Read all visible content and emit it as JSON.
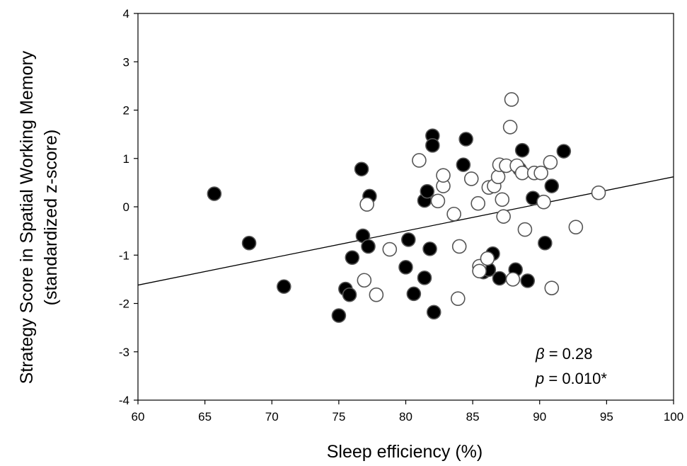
{
  "chart_data": {
    "type": "scatter",
    "title": "",
    "xlabel": "Sleep efficiency (%)",
    "ylabel": [
      "Strategy Score in Spatial Working Memory",
      "(standardized z-score)"
    ],
    "xlim": [
      60,
      100
    ],
    "ylim": [
      -4,
      4
    ],
    "x_ticks": [
      "60",
      "65",
      "70",
      "75",
      "80",
      "85",
      "90",
      "95",
      "100"
    ],
    "y_ticks": [
      "4",
      "3",
      "2",
      "1",
      "0",
      "-1",
      "-2",
      "-3",
      "-4"
    ],
    "grid": false,
    "legend": "none",
    "series": [
      {
        "marker": "filled-circle",
        "color": "#000000",
        "points": [
          [
            65.7,
            0.27
          ],
          [
            68.3,
            -0.75
          ],
          [
            70.9,
            -1.65
          ],
          [
            75.0,
            -2.25
          ],
          [
            75.5,
            -1.7
          ],
          [
            75.8,
            -1.82
          ],
          [
            76.0,
            -1.05
          ],
          [
            76.7,
            0.78
          ],
          [
            76.8,
            -0.6
          ],
          [
            77.2,
            -0.82
          ],
          [
            77.3,
            0.22
          ],
          [
            80.0,
            -1.25
          ],
          [
            80.2,
            -0.68
          ],
          [
            80.6,
            -1.8
          ],
          [
            81.4,
            -1.47
          ],
          [
            81.4,
            0.13
          ],
          [
            81.6,
            0.32
          ],
          [
            81.8,
            -0.87
          ],
          [
            82.0,
            1.47
          ],
          [
            82.0,
            1.27
          ],
          [
            82.1,
            -2.18
          ],
          [
            84.3,
            0.87
          ],
          [
            84.5,
            1.4
          ],
          [
            85.8,
            -1.35
          ],
          [
            86.2,
            -1.3
          ],
          [
            86.5,
            -0.97
          ],
          [
            87.0,
            -1.48
          ],
          [
            88.2,
            -1.3
          ],
          [
            88.5,
            0.78
          ],
          [
            88.7,
            1.17
          ],
          [
            89.1,
            -1.53
          ],
          [
            89.5,
            0.18
          ],
          [
            90.4,
            -0.75
          ],
          [
            90.9,
            0.43
          ],
          [
            91.8,
            1.15
          ]
        ]
      },
      {
        "marker": "open-circle",
        "color": "#ffffff",
        "points": [
          [
            76.9,
            -1.52
          ],
          [
            77.1,
            0.05
          ],
          [
            77.8,
            -1.82
          ],
          [
            78.8,
            -0.88
          ],
          [
            81.0,
            0.96
          ],
          [
            82.4,
            0.12
          ],
          [
            82.8,
            0.43
          ],
          [
            82.8,
            0.65
          ],
          [
            83.6,
            -0.15
          ],
          [
            83.9,
            -1.9
          ],
          [
            84.0,
            -0.82
          ],
          [
            84.9,
            0.58
          ],
          [
            85.4,
            0.07
          ],
          [
            85.5,
            -1.23
          ],
          [
            85.5,
            -1.33
          ],
          [
            86.1,
            -1.07
          ],
          [
            86.2,
            0.4
          ],
          [
            86.6,
            0.43
          ],
          [
            86.9,
            0.62
          ],
          [
            87.0,
            0.87
          ],
          [
            87.2,
            0.15
          ],
          [
            87.3,
            -0.2
          ],
          [
            87.5,
            0.85
          ],
          [
            87.8,
            1.65
          ],
          [
            87.9,
            2.22
          ],
          [
            88.0,
            -1.5
          ],
          [
            88.3,
            0.85
          ],
          [
            88.7,
            0.7
          ],
          [
            88.9,
            -0.47
          ],
          [
            89.6,
            0.7
          ],
          [
            90.1,
            0.7
          ],
          [
            90.3,
            0.1
          ],
          [
            90.8,
            0.92
          ],
          [
            90.9,
            -1.68
          ],
          [
            92.7,
            -0.42
          ],
          [
            94.4,
            0.29
          ]
        ]
      }
    ],
    "trendline": {
      "x": [
        60,
        100
      ],
      "y": [
        -1.62,
        0.62
      ]
    },
    "annotation": {
      "beta_symbol": "β",
      "beta_text": " = 0.28",
      "p_symbol": "p",
      "p_text": " = 0.010*"
    }
  }
}
